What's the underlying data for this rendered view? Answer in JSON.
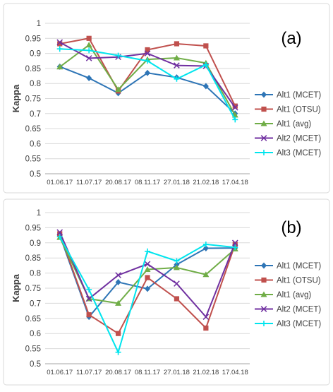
{
  "chart_data": [
    {
      "type": "line",
      "panel_label": "(a)",
      "ylabel": "Kappa",
      "ylim": [
        0.5,
        1
      ],
      "yticks": [
        "0.5",
        "0.55",
        "0.6",
        "0.65",
        "0.7",
        "0.75",
        "0.8",
        "0.85",
        "0.9",
        "0.95",
        "1"
      ],
      "categories": [
        "01.06.17",
        "11.07.17",
        "20.08.17",
        "08.11.17",
        "27.01.18",
        "21.02.18",
        "17.04.18"
      ],
      "grid": true,
      "legend": "right",
      "series": [
        {
          "name": "Alt1 (MCET)",
          "color": "#2e75b6",
          "marker": "diamond",
          "values": [
            0.856,
            0.818,
            0.768,
            0.835,
            0.82,
            0.791,
            0.7
          ]
        },
        {
          "name": "Alt1 (OTSU)",
          "color": "#c0504d",
          "marker": "square",
          "values": [
            0.932,
            0.95,
            0.775,
            0.912,
            0.932,
            0.925,
            0.725
          ]
        },
        {
          "name": "Alt1 (avg)",
          "color": "#70ad47",
          "marker": "triangle",
          "values": [
            0.855,
            0.928,
            0.78,
            0.88,
            0.885,
            0.868,
            0.695
          ]
        },
        {
          "name": "Alt2 (MCET)",
          "color": "#7030a0",
          "marker": "x",
          "values": [
            0.937,
            0.884,
            0.888,
            0.9,
            0.86,
            0.858,
            0.72
          ]
        },
        {
          "name": "Alt3 (MCET)",
          "color": "#00e5ee",
          "marker": "plus",
          "values": [
            0.915,
            0.91,
            0.893,
            0.875,
            0.815,
            0.862,
            0.68
          ]
        }
      ]
    },
    {
      "type": "line",
      "panel_label": "(b)",
      "ylabel": "Kappa",
      "ylim": [
        0.5,
        1
      ],
      "yticks": [
        "0.5",
        "0.55",
        "0.6",
        "0.65",
        "0.7",
        "0.75",
        "0.8",
        "0.85",
        "0.9",
        "0.95",
        "1"
      ],
      "categories": [
        "01.06.17",
        "11.07.17",
        "20.08.17",
        "08.11.17",
        "27.01.18",
        "21.02.18",
        "17.04.18"
      ],
      "grid": true,
      "legend": "right",
      "series": [
        {
          "name": "Alt1 (MCET)",
          "color": "#2e75b6",
          "marker": "diamond",
          "values": [
            0.925,
            0.655,
            0.77,
            0.748,
            0.828,
            0.882,
            0.883
          ]
        },
        {
          "name": "Alt1 (OTSU)",
          "color": "#c0504d",
          "marker": "square",
          "values": [
            0.93,
            0.662,
            0.6,
            0.785,
            0.715,
            0.618,
            0.895
          ]
        },
        {
          "name": "Alt1 (avg)",
          "color": "#70ad47",
          "marker": "triangle",
          "values": [
            0.918,
            0.715,
            0.7,
            0.812,
            0.818,
            0.795,
            0.88
          ]
        },
        {
          "name": "Alt2 (MCET)",
          "color": "#7030a0",
          "marker": "x",
          "values": [
            0.935,
            0.715,
            0.793,
            0.83,
            0.765,
            0.655,
            0.9
          ]
        },
        {
          "name": "Alt3 (MCET)",
          "color": "#00e5ee",
          "marker": "plus",
          "values": [
            0.92,
            0.745,
            0.538,
            0.872,
            0.84,
            0.895,
            0.885
          ]
        }
      ]
    }
  ]
}
